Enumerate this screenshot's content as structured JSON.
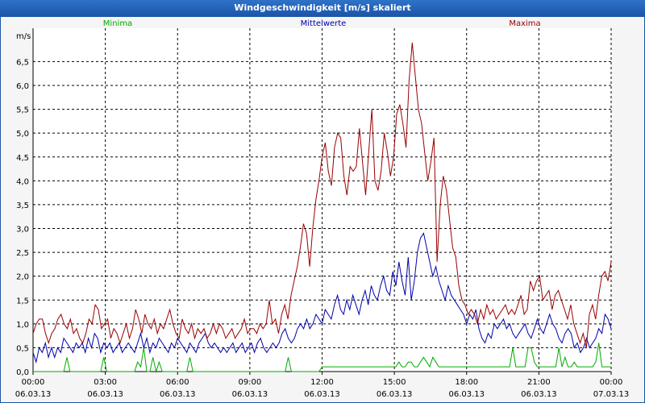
{
  "window": {
    "title": "Windgeschwindigkeit [m/s] skaliert"
  },
  "chart_data": {
    "type": "line",
    "title": "Windgeschwindigkeit [m/s] skaliert",
    "ylabel": "m/s",
    "ylim": [
      0,
      7.2
    ],
    "yticks": [
      "0,0",
      "0,5",
      "1,0",
      "1,5",
      "2,0",
      "2,5",
      "3,0",
      "3,5",
      "4,0",
      "4,5",
      "5,0",
      "5,5",
      "6,0",
      "6,5"
    ],
    "ytick_values": [
      0,
      0.5,
      1,
      1.5,
      2,
      2.5,
      3,
      3.5,
      4,
      4.5,
      5,
      5.5,
      6,
      6.5
    ],
    "x_ticks": [
      {
        "time": "00:00",
        "date": "06.03.13"
      },
      {
        "time": "03:00",
        "date": "06.03.13"
      },
      {
        "time": "06:00",
        "date": "06.03.13"
      },
      {
        "time": "09:00",
        "date": "06.03.13"
      },
      {
        "time": "12:00",
        "date": "06.03.13"
      },
      {
        "time": "15:00",
        "date": "06.03.13"
      },
      {
        "time": "18:00",
        "date": "06.03.13"
      },
      {
        "time": "21:00",
        "date": "06.03.13"
      },
      {
        "time": "00:00",
        "date": "07.03.13"
      }
    ],
    "x_range_hours": [
      0,
      24
    ],
    "series": [
      {
        "name": "Minima",
        "color": "#00aa00",
        "legend_position": "left",
        "values": [
          0,
          0,
          0,
          0,
          0,
          0,
          0,
          0,
          0,
          0,
          0,
          0.3,
          0,
          0,
          0,
          0,
          0,
          0,
          0,
          0,
          0,
          0,
          0,
          0.3,
          0,
          0,
          0,
          0,
          0,
          0,
          0,
          0,
          0,
          0,
          0.2,
          0.1,
          0.5,
          0,
          0,
          0.3,
          0,
          0.2,
          0,
          0,
          0,
          0,
          0,
          0,
          0,
          0,
          0,
          0.3,
          0,
          0,
          0,
          0,
          0,
          0,
          0,
          0,
          0,
          0,
          0,
          0,
          0,
          0,
          0,
          0,
          0,
          0,
          0,
          0,
          0,
          0,
          0,
          0,
          0,
          0,
          0,
          0,
          0,
          0,
          0,
          0.3,
          0,
          0,
          0,
          0,
          0,
          0,
          0,
          0,
          0,
          0,
          0.1,
          0.1,
          0.1,
          0.1,
          0.1,
          0.1,
          0.1,
          0.1,
          0.1,
          0.1,
          0.1,
          0.1,
          0.1,
          0.1,
          0.1,
          0.1,
          0.1,
          0.1,
          0.1,
          0.1,
          0.1,
          0.1,
          0.1,
          0.1,
          0.1,
          0.2,
          0.1,
          0.1,
          0.2,
          0.2,
          0.1,
          0.1,
          0.2,
          0.3,
          0.2,
          0.1,
          0.3,
          0.2,
          0.1,
          0.1,
          0.1,
          0.1,
          0.1,
          0.1,
          0.1,
          0.1,
          0.1,
          0.1,
          0.1,
          0.1,
          0.1,
          0.1,
          0.1,
          0.1,
          0.1,
          0.1,
          0.1,
          0.1,
          0.1,
          0.1,
          0.1,
          0.1,
          0.5,
          0.1,
          0.1,
          0.1,
          0.1,
          0.5,
          0.5,
          0.2,
          0.1,
          0.1,
          0.1,
          0.1,
          0.1,
          0.1,
          0.1,
          0.5,
          0.1,
          0.3,
          0.1,
          0.1,
          0.2,
          0.1,
          0.1,
          0.1,
          0.1,
          0.1,
          0.1,
          0.2,
          0.6,
          0.1,
          0.1,
          0.1,
          0.1
        ]
      },
      {
        "name": "Mittelwerte",
        "color": "#0000aa",
        "legend_position": "center",
        "values": [
          0.4,
          0.2,
          0.5,
          0.4,
          0.6,
          0.3,
          0.5,
          0.3,
          0.5,
          0.4,
          0.7,
          0.6,
          0.5,
          0.4,
          0.6,
          0.5,
          0.6,
          0.4,
          0.7,
          0.5,
          0.8,
          0.7,
          0.4,
          0.6,
          0.5,
          0.6,
          0.4,
          0.5,
          0.6,
          0.4,
          0.5,
          0.6,
          0.5,
          0.4,
          0.6,
          0.8,
          0.5,
          0.7,
          0.4,
          0.6,
          0.5,
          0.7,
          0.6,
          0.5,
          0.4,
          0.6,
          0.5,
          0.7,
          0.6,
          0.5,
          0.4,
          0.6,
          0.5,
          0.4,
          0.6,
          0.7,
          0.8,
          0.6,
          0.5,
          0.6,
          0.5,
          0.4,
          0.5,
          0.4,
          0.5,
          0.6,
          0.4,
          0.5,
          0.6,
          0.4,
          0.5,
          0.6,
          0.4,
          0.6,
          0.7,
          0.5,
          0.4,
          0.5,
          0.6,
          0.5,
          0.6,
          0.8,
          0.9,
          0.7,
          0.6,
          0.7,
          0.9,
          1.0,
          0.9,
          1.1,
          0.9,
          1.0,
          1.2,
          1.1,
          1.0,
          1.3,
          1.2,
          1.1,
          1.4,
          1.6,
          1.3,
          1.2,
          1.5,
          1.3,
          1.6,
          1.4,
          1.2,
          1.5,
          1.7,
          1.4,
          1.8,
          1.6,
          1.5,
          1.8,
          2.0,
          1.7,
          1.6,
          2.1,
          1.8,
          2.3,
          1.9,
          1.6,
          2.4,
          1.5,
          1.9,
          2.5,
          2.8,
          2.9,
          2.6,
          2.3,
          2.0,
          2.2,
          1.9,
          1.7,
          1.5,
          1.8,
          1.6,
          1.5,
          1.4,
          1.3,
          1.2,
          1.0,
          1.2,
          1.1,
          1.3,
          0.9,
          0.7,
          0.6,
          0.8,
          0.7,
          1.0,
          0.9,
          1.0,
          1.1,
          0.9,
          1.0,
          0.8,
          0.7,
          0.8,
          0.9,
          1.0,
          0.8,
          0.7,
          0.9,
          1.1,
          0.9,
          0.8,
          1.0,
          1.2,
          1.0,
          0.9,
          0.7,
          0.6,
          0.8,
          0.9,
          0.8,
          0.5,
          0.6,
          0.4,
          0.5,
          0.7,
          0.5,
          0.6,
          0.7,
          0.9,
          0.8,
          1.2,
          1.1,
          0.9
        ]
      },
      {
        "name": "Maxima",
        "color": "#990000",
        "legend_position": "right",
        "values": [
          0.8,
          1.0,
          1.1,
          1.1,
          0.8,
          0.6,
          0.8,
          0.9,
          1.1,
          1.2,
          1.0,
          0.9,
          1.1,
          0.8,
          0.9,
          0.7,
          0.6,
          0.8,
          1.1,
          1.0,
          1.4,
          1.3,
          0.9,
          1.0,
          1.1,
          0.7,
          0.9,
          0.8,
          0.6,
          0.8,
          1.0,
          0.7,
          0.9,
          1.3,
          1.1,
          0.8,
          1.2,
          1.0,
          0.9,
          1.1,
          0.8,
          1.0,
          0.9,
          1.1,
          1.3,
          1.0,
          0.8,
          0.7,
          1.1,
          0.9,
          0.8,
          1.0,
          0.7,
          0.9,
          0.8,
          0.9,
          0.7,
          0.8,
          1.0,
          0.8,
          1.0,
          0.9,
          0.7,
          0.8,
          0.9,
          0.7,
          0.8,
          0.9,
          1.1,
          0.8,
          0.9,
          0.9,
          0.8,
          1.0,
          0.9,
          1.0,
          1.5,
          1.0,
          1.1,
          0.8,
          1.2,
          1.4,
          1.1,
          1.6,
          1.9,
          2.2,
          2.6,
          3.1,
          2.9,
          2.2,
          3.0,
          3.6,
          4.0,
          4.5,
          4.8,
          4.2,
          3.9,
          4.7,
          5.0,
          4.9,
          4.1,
          3.7,
          4.3,
          4.2,
          4.3,
          5.1,
          4.4,
          3.7,
          4.6,
          5.5,
          4.0,
          3.8,
          4.2,
          5.0,
          4.6,
          4.1,
          4.5,
          5.4,
          5.6,
          5.2,
          4.7,
          6.1,
          6.9,
          6.2,
          5.5,
          5.2,
          4.6,
          4.0,
          4.4,
          4.9,
          2.3,
          3.5,
          4.1,
          3.8,
          3.2,
          2.6,
          2.4,
          1.8,
          1.5,
          1.4,
          1.2,
          1.3,
          1.2,
          1.0,
          1.3,
          1.1,
          1.4,
          1.2,
          1.3,
          1.1,
          1.2,
          1.3,
          1.4,
          1.2,
          1.3,
          1.2,
          1.4,
          1.6,
          1.2,
          1.3,
          1.9,
          1.7,
          1.9,
          2.0,
          1.5,
          1.6,
          1.7,
          1.3,
          1.6,
          1.7,
          1.5,
          1.3,
          1.1,
          1.4,
          1.0,
          0.8,
          0.6,
          0.8,
          0.5,
          1.2,
          1.4,
          1.1,
          1.6,
          2.0,
          2.1,
          1.9,
          2.3
        ]
      }
    ]
  }
}
